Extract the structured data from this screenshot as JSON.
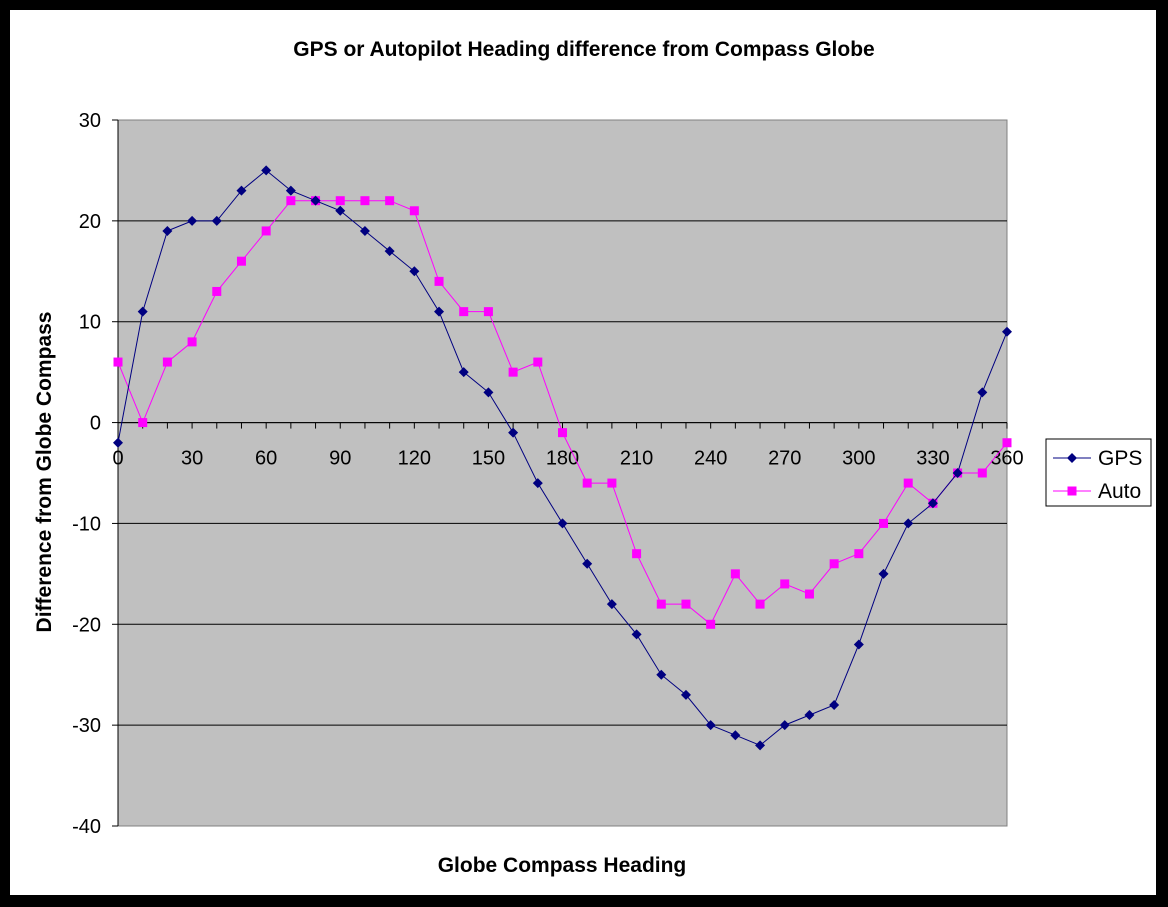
{
  "chart_data": {
    "type": "line",
    "title": "GPS or Autopilot Heading difference from Compass Globe",
    "xlabel": "Globe Compass Heading",
    "ylabel": "Difference from Globe Compass",
    "xlim": [
      0,
      360
    ],
    "ylim": [
      -40,
      30
    ],
    "xticks": [
      0,
      30,
      60,
      90,
      120,
      150,
      180,
      210,
      240,
      270,
      300,
      330,
      360
    ],
    "yticks": [
      30,
      20,
      10,
      0,
      -10,
      -20,
      -30,
      -40
    ],
    "grid": "horizontal",
    "legend": "right",
    "plot_background": "#c0c0c0",
    "x": [
      0,
      10,
      20,
      30,
      40,
      50,
      60,
      70,
      80,
      90,
      100,
      110,
      120,
      130,
      140,
      150,
      160,
      170,
      180,
      190,
      200,
      210,
      220,
      230,
      240,
      250,
      260,
      270,
      280,
      290,
      300,
      310,
      320,
      330,
      340,
      350,
      360
    ],
    "series": [
      {
        "name": "GPS",
        "color": "#000080",
        "marker": "diamond",
        "values": [
          -2,
          11,
          19,
          20,
          20,
          23,
          25,
          23,
          22,
          21,
          19,
          17,
          15,
          11,
          5,
          3,
          -1,
          -6,
          -10,
          -14,
          -18,
          -21,
          -25,
          -27,
          -30,
          -31,
          -32,
          -30,
          -29,
          -28,
          -22,
          -15,
          -10,
          -8,
          -5,
          3,
          9
        ]
      },
      {
        "name": "Auto",
        "color": "#ff00ff",
        "marker": "square",
        "values": [
          6,
          0,
          6,
          8,
          13,
          16,
          19,
          22,
          22,
          22,
          22,
          22,
          21,
          14,
          11,
          11,
          5,
          6,
          -1,
          -6,
          -6,
          -13,
          -18,
          -18,
          -20,
          -15,
          -18,
          -16,
          -17,
          -14,
          -13,
          -10,
          -6,
          -8,
          -5,
          -5,
          -2
        ]
      }
    ]
  }
}
